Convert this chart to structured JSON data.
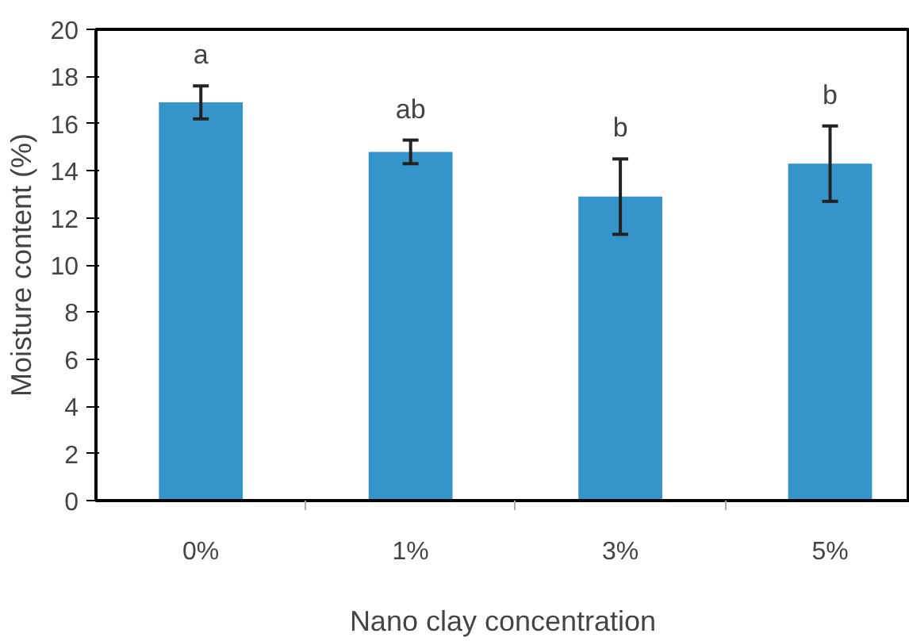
{
  "chart_data": {
    "type": "bar",
    "xlabel": "Nano clay concentration",
    "ylabel": "Moisture content (%)",
    "categories": [
      "0%",
      "1%",
      "3%",
      "5%"
    ],
    "values": [
      16.9,
      14.8,
      12.9,
      14.3
    ],
    "errors": [
      0.7,
      0.5,
      1.6,
      1.6
    ],
    "color": "#3595cb",
    "ylim": [
      0,
      20
    ],
    "yticks": [
      0,
      2,
      4,
      6,
      8,
      10,
      12,
      14,
      16,
      18,
      20
    ],
    "grid": false,
    "annotations": [
      "a",
      "ab",
      "b",
      "b"
    ]
  }
}
